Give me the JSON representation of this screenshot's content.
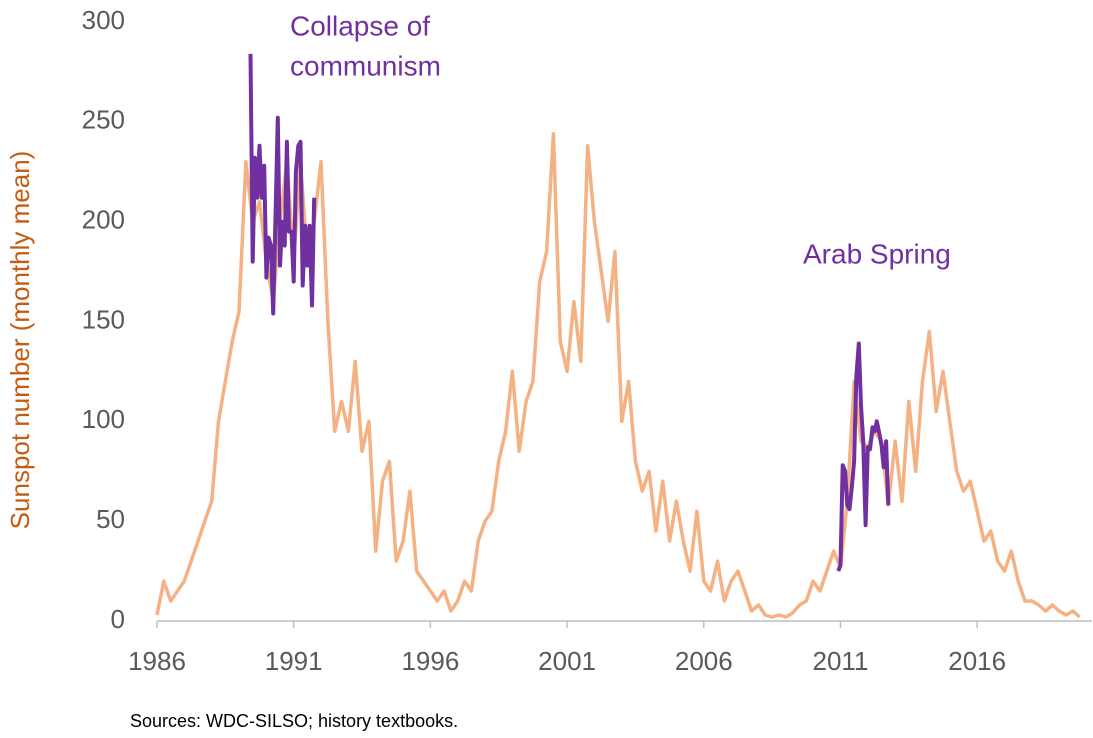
{
  "chart_data": {
    "type": "line",
    "y_label": "Sunspot number (monthly mean)",
    "source": "Sources:  WDC-SILSO; history textbooks.",
    "annotations": [
      "Collapse of",
      "communism",
      "Arab Spring"
    ],
    "xlim": [
      1986,
      2020.2
    ],
    "ylim": [
      0,
      300
    ],
    "xticks": [
      1986,
      1991,
      1996,
      2001,
      2006,
      2011,
      2016
    ],
    "yticks": [
      0,
      50,
      100,
      150,
      200,
      250,
      300
    ],
    "grid": false,
    "series": [
      {
        "color": "#f4b183",
        "x": [
          1986,
          1986.25,
          1986.5,
          1986.75,
          1987,
          1987.25,
          1987.5,
          1987.75,
          1988,
          1988.25,
          1988.5,
          1988.75,
          1989,
          1989.25,
          1989.5,
          1989.75,
          1990,
          1990.25,
          1990.5,
          1990.75,
          1991,
          1991.25,
          1991.5,
          1991.75,
          1992,
          1992.25,
          1992.5,
          1992.75,
          1993,
          1993.25,
          1993.5,
          1993.75,
          1994,
          1994.25,
          1994.5,
          1994.75,
          1995,
          1995.25,
          1995.5,
          1995.75,
          1996,
          1996.25,
          1996.5,
          1996.75,
          1997,
          1997.25,
          1997.5,
          1997.75,
          1998,
          1998.25,
          1998.5,
          1998.75,
          1999,
          1999.25,
          1999.5,
          1999.75,
          2000,
          2000.25,
          2000.5,
          2000.75,
          2001,
          2001.25,
          2001.5,
          2001.75,
          2002,
          2002.25,
          2002.5,
          2002.75,
          2003,
          2003.25,
          2003.5,
          2003.75,
          2004,
          2004.25,
          2004.5,
          2004.75,
          2005,
          2005.25,
          2005.5,
          2005.75,
          2006,
          2006.25,
          2006.5,
          2006.75,
          2007,
          2007.25,
          2007.5,
          2007.75,
          2008,
          2008.25,
          2008.5,
          2008.75,
          2009,
          2009.25,
          2009.5,
          2009.75,
          2010,
          2010.25,
          2010.5,
          2010.75,
          2011,
          2011.25,
          2011.5,
          2011.75,
          2012,
          2012.25,
          2012.5,
          2012.75,
          2013,
          2013.25,
          2013.5,
          2013.75,
          2014,
          2014.25,
          2014.5,
          2014.75,
          2015,
          2015.25,
          2015.5,
          2015.75,
          2016,
          2016.25,
          2016.5,
          2016.75,
          2017,
          2017.25,
          2017.5,
          2017.75,
          2018,
          2018.25,
          2018.5,
          2018.75,
          2019,
          2019.25,
          2019.5,
          2019.75
        ],
        "values": [
          3,
          20,
          10,
          15,
          20,
          30,
          40,
          50,
          60,
          100,
          120,
          140,
          155,
          230,
          200,
          210,
          180,
          160,
          200,
          230,
          180,
          230,
          180,
          200,
          230,
          150,
          95,
          110,
          95,
          130,
          85,
          100,
          35,
          70,
          80,
          30,
          40,
          65,
          25,
          20,
          15,
          10,
          15,
          5,
          10,
          20,
          15,
          40,
          50,
          55,
          80,
          95,
          125,
          85,
          110,
          120,
          170,
          185,
          244,
          140,
          125,
          160,
          130,
          238,
          200,
          175,
          150,
          185,
          100,
          120,
          80,
          65,
          75,
          45,
          70,
          40,
          60,
          40,
          25,
          55,
          20,
          15,
          30,
          10,
          20,
          25,
          15,
          5,
          8,
          3,
          2,
          3,
          2,
          4,
          8,
          10,
          20,
          15,
          25,
          35,
          27,
          60,
          120,
          90,
          87,
          95,
          90,
          58,
          90,
          60,
          110,
          75,
          120,
          145,
          105,
          125,
          100,
          75,
          65,
          70,
          55,
          40,
          45,
          30,
          25,
          35,
          20,
          10,
          10,
          8,
          5,
          8,
          5,
          3,
          5,
          2
        ]
      },
      {
        "color": "#7030a0",
        "x": [
          1989.42,
          1989.5,
          1989.58,
          1989.67,
          1989.75,
          1989.83,
          1989.92,
          1990,
          1990.08,
          1990.17,
          1990.25,
          1990.33,
          1990.42,
          1990.5,
          1990.58,
          1990.67,
          1990.75,
          1990.83,
          1990.92,
          1991,
          1991.08,
          1991.17,
          1991.25,
          1991.33,
          1991.42,
          1991.5,
          1991.58,
          1991.67,
          1991.75
        ],
        "values": [
          284,
          180,
          232,
          212,
          238,
          212,
          228,
          172,
          192,
          188,
          154,
          200,
          252,
          178,
          200,
          188,
          240,
          195,
          195,
          170,
          225,
          238,
          240,
          168,
          198,
          178,
          198,
          158,
          212
        ]
      },
      {
        "color": "#7030a0",
        "x": [
          2010.92,
          2011,
          2011.08,
          2011.17,
          2011.25,
          2011.33,
          2011.42,
          2011.5,
          2011.58,
          2011.67,
          2011.75,
          2011.83,
          2011.92,
          2012,
          2012.08,
          2012.17,
          2012.25,
          2012.33,
          2012.42,
          2012.5,
          2012.58,
          2012.67,
          2012.75
        ],
        "values": [
          25,
          28,
          78,
          75,
          58,
          56,
          68,
          80,
          122,
          139,
          108,
          90,
          48,
          87,
          86,
          97,
          95,
          100,
          94,
          88,
          77,
          90,
          58
        ]
      }
    ]
  }
}
